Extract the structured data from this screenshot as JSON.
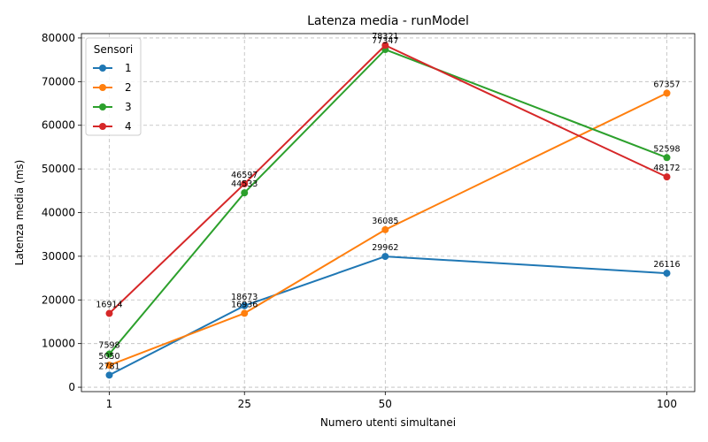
{
  "chart_data": {
    "type": "line",
    "title": "Latenza media - runModel",
    "xlabel": "Numero utenti simultanei",
    "ylabel": "Latenza media (ms)",
    "x": [
      1,
      25,
      50,
      100
    ],
    "x_tick_labels": [
      "1",
      "25",
      "50",
      "100"
    ],
    "x_spacing": "positions 1, 25, 50, 100 on a linear axis",
    "ylim": [
      -1000,
      81000
    ],
    "y_ticks": [
      0,
      10000,
      20000,
      30000,
      40000,
      50000,
      60000,
      70000,
      80000
    ],
    "y_tick_labels": [
      "0",
      "10000",
      "20000",
      "30000",
      "40000",
      "50000",
      "60000",
      "70000",
      "80000"
    ],
    "grid": true,
    "grid_style": "dashed",
    "legend": {
      "title": "Sensori",
      "placement": "top-left"
    },
    "series": [
      {
        "name": "1",
        "color": "#1f77b4",
        "values": [
          2781,
          18673,
          29962,
          26116
        ],
        "labels": [
          "2781",
          "18673",
          "29962",
          "26116"
        ]
      },
      {
        "name": "2",
        "color": "#ff7f0e",
        "values": [
          5050,
          16936,
          36085,
          67357
        ],
        "labels": [
          "5050",
          "16936",
          "36085",
          "67357"
        ]
      },
      {
        "name": "3",
        "color": "#2ca02c",
        "values": [
          7598,
          44533,
          77347,
          52598
        ],
        "labels": [
          "7598",
          "44533",
          "77347",
          "52598"
        ]
      },
      {
        "name": "4",
        "color": "#d62728",
        "values": [
          16914,
          46597,
          78321,
          48172
        ],
        "labels": [
          "16914",
          "46597",
          "78321",
          "48172"
        ]
      }
    ]
  }
}
